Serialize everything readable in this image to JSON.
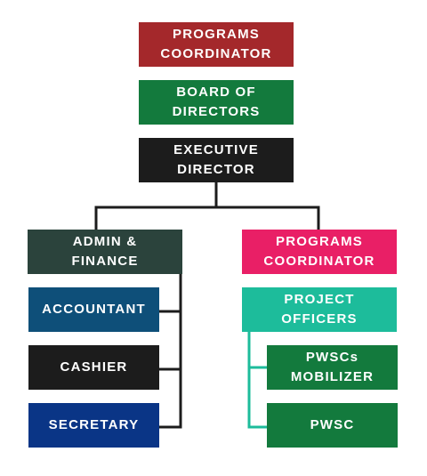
{
  "nodes": {
    "programs_coordinator_top": {
      "label": "PROGRAMS\nCOORDINATOR",
      "color": "#a4282b"
    },
    "board_of_directors": {
      "label": "BOARD OF\nDIRECTORS",
      "color": "#137a3d"
    },
    "executive_director": {
      "label": "EXECUTIVE\nDIRECTOR",
      "color": "#1c1c1c"
    },
    "admin_finance": {
      "label": "ADMIN &\nFINANCE",
      "color": "#2b433c"
    },
    "accountant": {
      "label": "ACCOUNTANT",
      "color": "#0e4f79"
    },
    "cashier": {
      "label": "CASHIER",
      "color": "#1c1c1c"
    },
    "secretary": {
      "label": "SECRETARY",
      "color": "#0a3586"
    },
    "programs_coordinator_right": {
      "label": "PROGRAMS\nCOORDINATOR",
      "color": "#e91f66"
    },
    "project_officers": {
      "label": "PROJECT\nOFFICERS",
      "color": "#1dbc9b"
    },
    "pwscs_mobilizer": {
      "label": "PWSCs\nMOBILIZER",
      "color": "#137a3d"
    },
    "pwsc": {
      "label": "PWSC",
      "color": "#137a3d"
    }
  },
  "connector_colors": {
    "main": "#1c1c1c",
    "project": "#1dbc9b"
  }
}
